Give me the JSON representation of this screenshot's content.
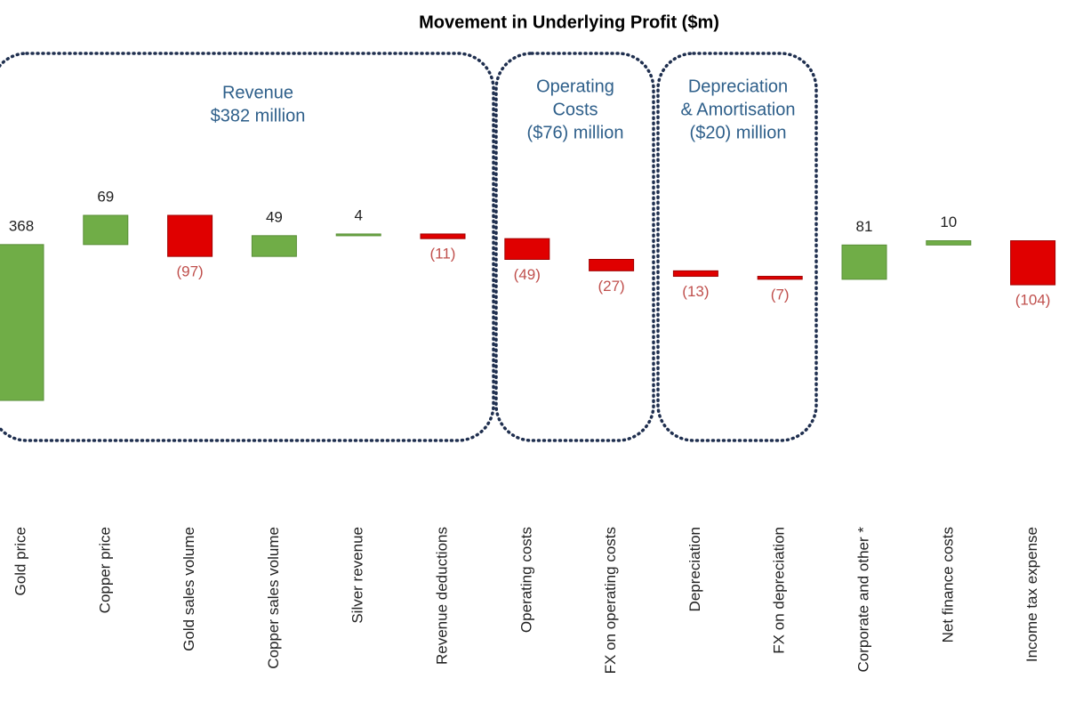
{
  "chart_data": {
    "type": "waterfall",
    "title": "Movement in Underlying Profit ($m)",
    "categories": [
      "Gold price",
      "Copper price",
      "Gold sales volume",
      "Copper sales volume",
      "Silver revenue",
      "Revenue deductions",
      "Operating costs",
      "FX on operating costs",
      "Depreciation",
      "FX on depreciation",
      "Corporate and other *",
      "Net finance costs",
      "Income tax expense"
    ],
    "values": [
      368,
      69,
      -97,
      49,
      4,
      -11,
      -49,
      -27,
      -13,
      -7,
      81,
      10,
      -104
    ],
    "value_labels": [
      "368",
      "69",
      "(97)",
      "49",
      "4",
      "(11)",
      "(49)",
      "(27)",
      "(13)",
      "(7)",
      "81",
      "10",
      "(104)"
    ],
    "positive_color": "#70ad47",
    "negative_color": "#e00000",
    "annotations": [
      [
        "Revenue",
        "$382 million"
      ],
      [
        "Operating",
        "Costs",
        "($76) million"
      ],
      [
        "Depreciation",
        "& Amortisation",
        "($20) million"
      ]
    ]
  }
}
